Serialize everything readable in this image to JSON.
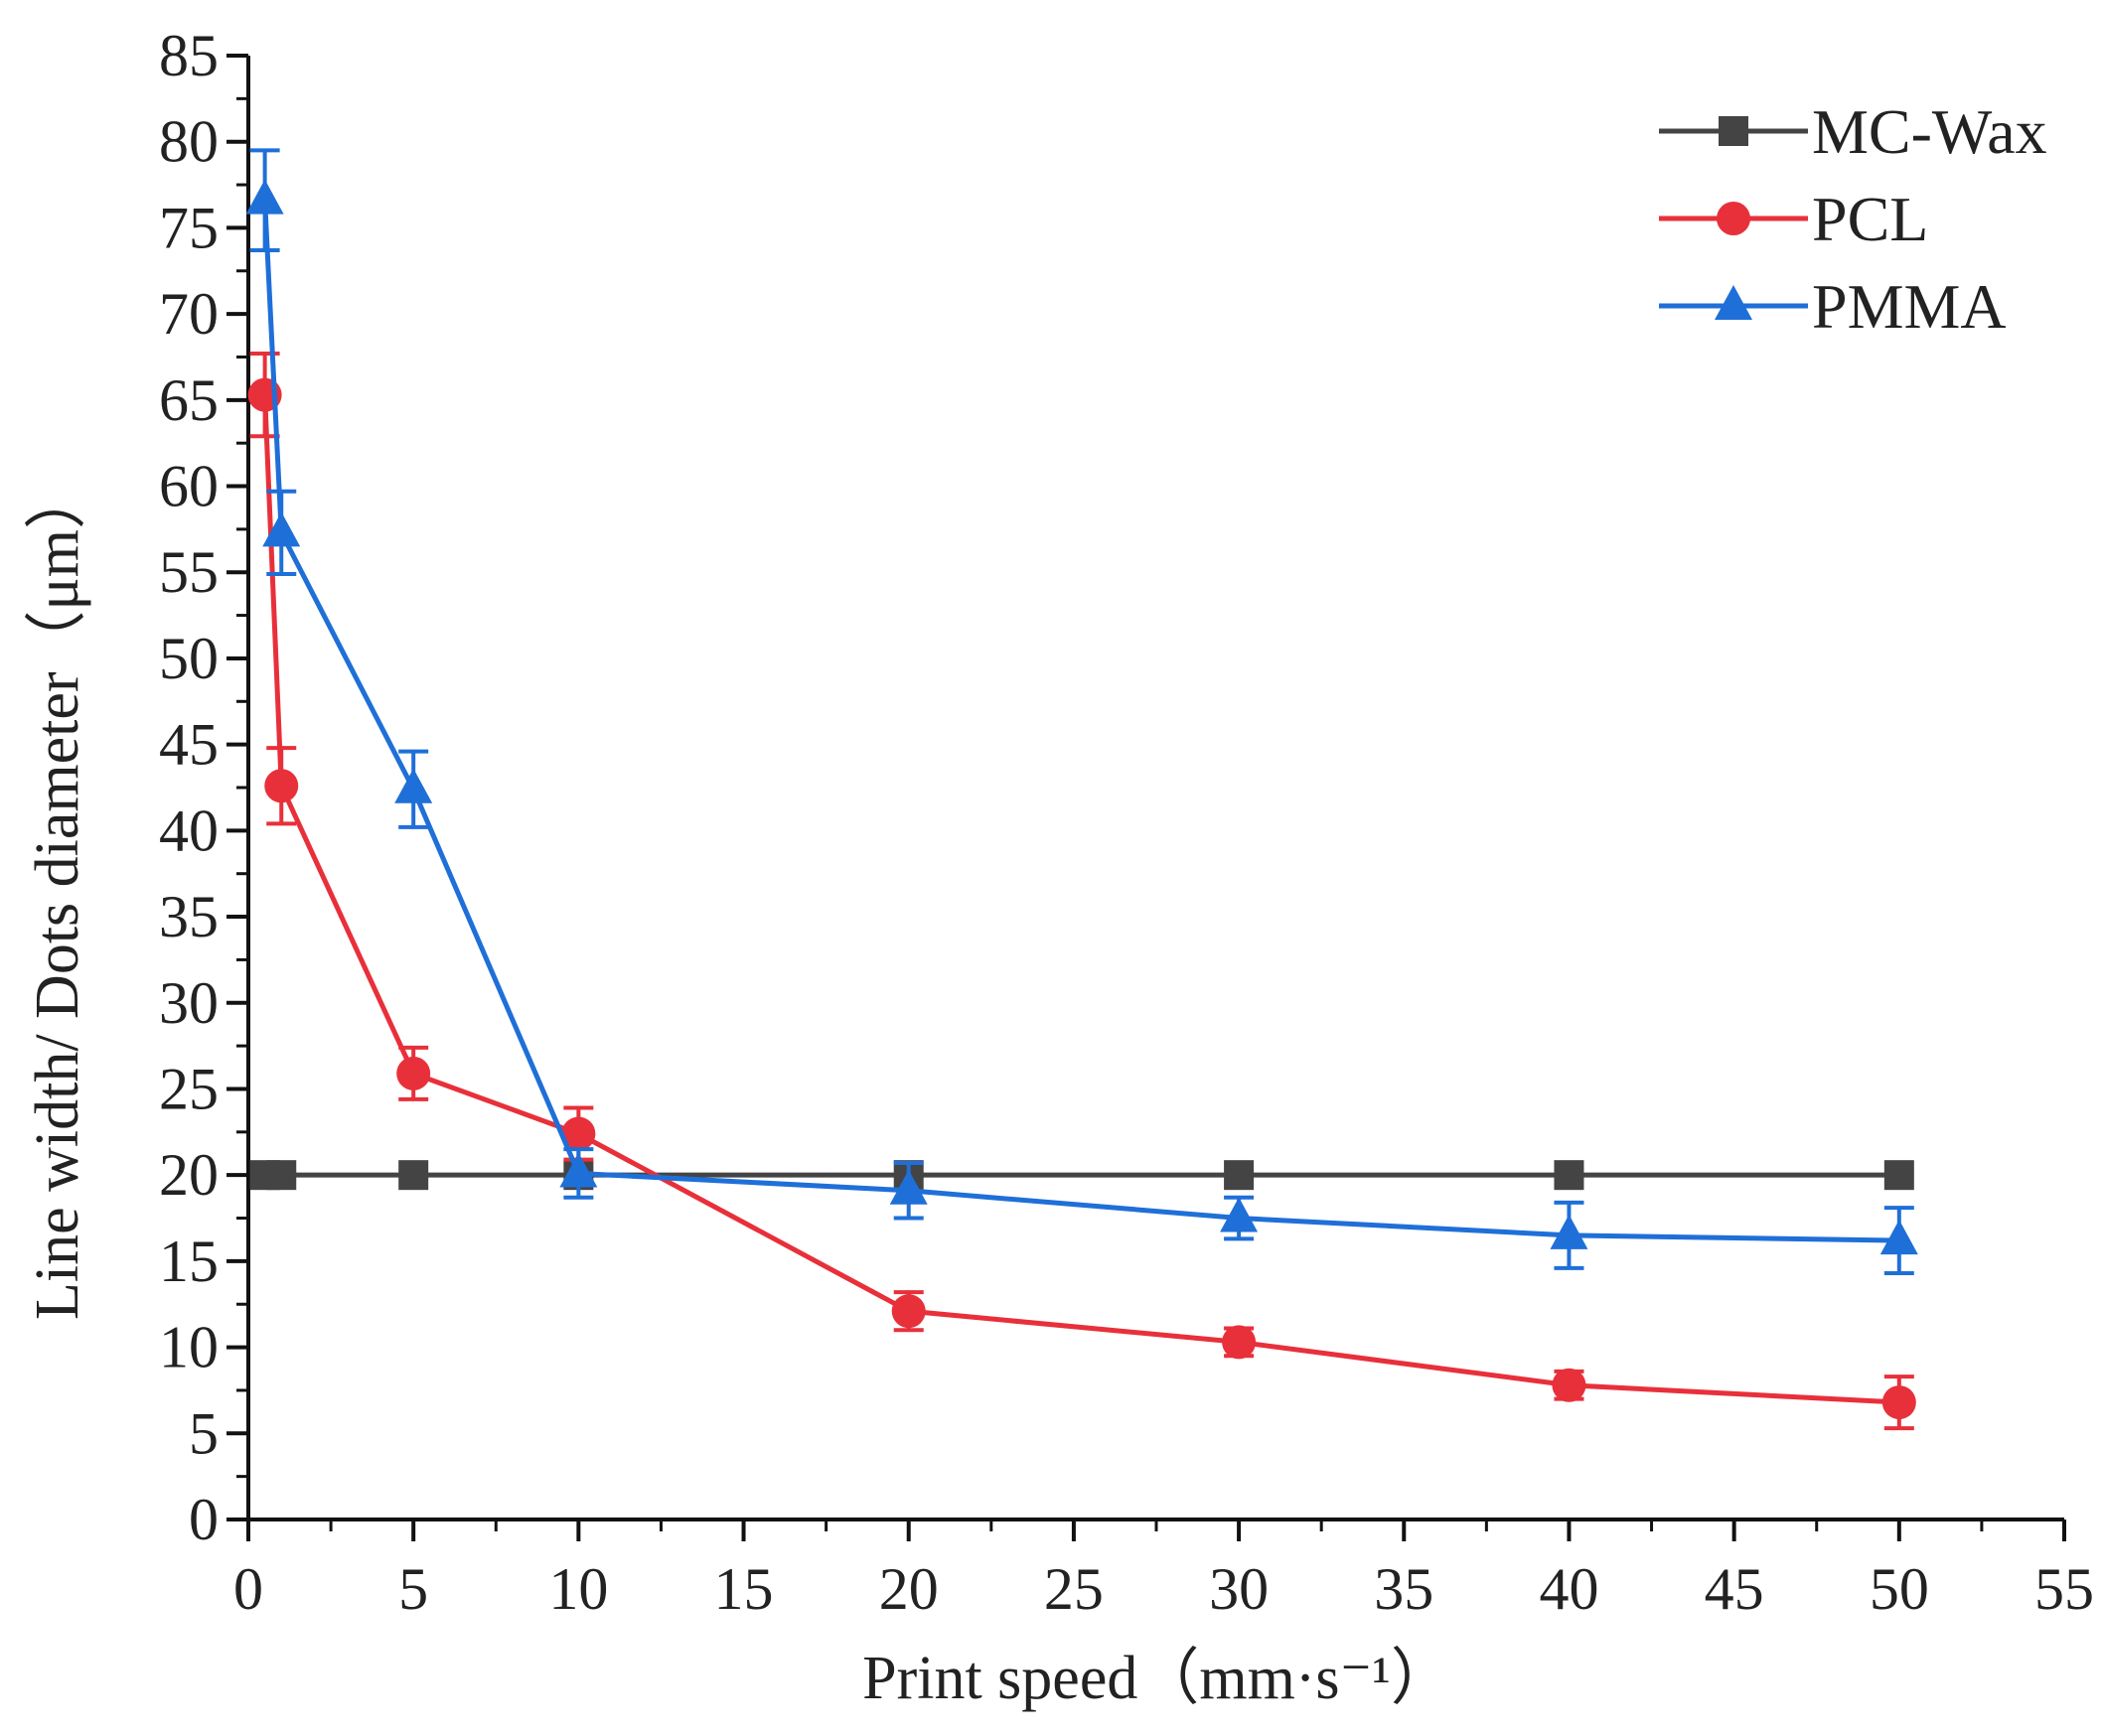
{
  "chart_data": {
    "type": "line",
    "title": "",
    "xlabel": "Print speed（mm·s⁻¹）",
    "ylabel": "Line width/ Dots diameter（μm）",
    "xlim": [
      0,
      55
    ],
    "ylim": [
      0,
      85
    ],
    "xticks": [
      0,
      5,
      10,
      15,
      20,
      25,
      30,
      35,
      40,
      45,
      50,
      55
    ],
    "yticks": [
      0,
      5,
      10,
      15,
      20,
      25,
      30,
      35,
      40,
      45,
      50,
      55,
      60,
      65,
      70,
      75,
      80,
      85
    ],
    "grid": false,
    "legend_position": "top-right",
    "series": [
      {
        "name": "MC-Wax",
        "color": "#444444",
        "marker": "square",
        "x": [
          0.5,
          1,
          5,
          10,
          20,
          30,
          40,
          50
        ],
        "y": [
          20,
          20,
          20,
          20,
          20,
          20,
          20,
          20
        ],
        "err": [
          0,
          0,
          0,
          0,
          0,
          0,
          0,
          0
        ]
      },
      {
        "name": "PCL",
        "color": "#e8303a",
        "marker": "circle",
        "x": [
          0.5,
          1,
          5,
          10,
          20,
          30,
          40,
          50
        ],
        "y": [
          65.3,
          42.6,
          25.9,
          22.4,
          12.1,
          10.3,
          7.8,
          6.8
        ],
        "err": [
          2.4,
          2.2,
          1.5,
          1.5,
          1.1,
          0.8,
          0.8,
          1.5
        ]
      },
      {
        "name": "PMMA",
        "color": "#1f6fd8",
        "marker": "triangle",
        "x": [
          0.5,
          1,
          5,
          10,
          20,
          30,
          40,
          50
        ],
        "y": [
          76.6,
          57.3,
          42.4,
          20.1,
          19.1,
          17.5,
          16.5,
          16.2
        ],
        "err": [
          2.9,
          2.4,
          2.2,
          1.4,
          1.6,
          1.2,
          1.9,
          1.9
        ]
      }
    ]
  }
}
